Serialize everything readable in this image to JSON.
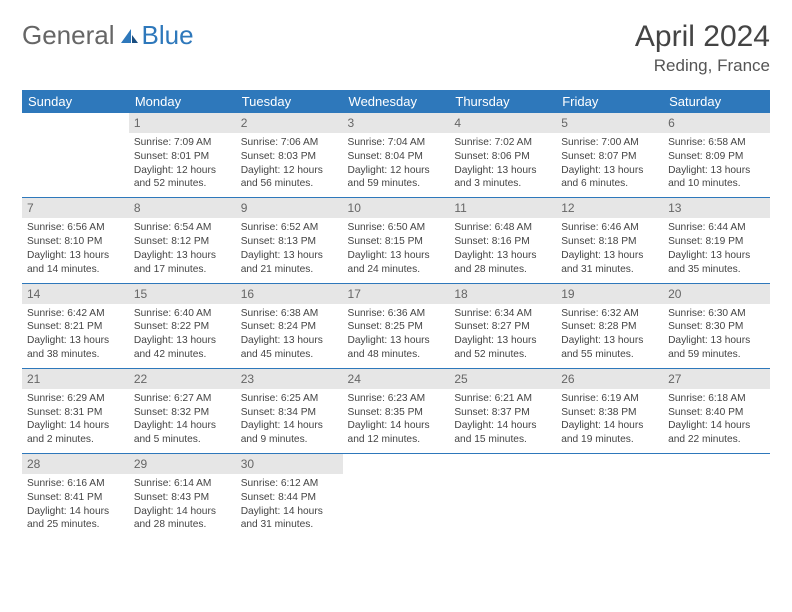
{
  "logo": {
    "text1": "General",
    "text2": "Blue"
  },
  "title": "April 2024",
  "location": "Reding, France",
  "weekdays": [
    "Sunday",
    "Monday",
    "Tuesday",
    "Wednesday",
    "Thursday",
    "Friday",
    "Saturday"
  ],
  "colors": {
    "header_bg": "#2e78bb",
    "header_text": "#ffffff",
    "daynum_bg": "#e6e6e6",
    "rule": "#2e78bb",
    "logo_blue": "#2e78bb"
  },
  "cells": [
    {
      "day": "",
      "sunrise": "",
      "sunset": "",
      "daylight": ""
    },
    {
      "day": "1",
      "sunrise": "Sunrise: 7:09 AM",
      "sunset": "Sunset: 8:01 PM",
      "daylight": "Daylight: 12 hours and 52 minutes."
    },
    {
      "day": "2",
      "sunrise": "Sunrise: 7:06 AM",
      "sunset": "Sunset: 8:03 PM",
      "daylight": "Daylight: 12 hours and 56 minutes."
    },
    {
      "day": "3",
      "sunrise": "Sunrise: 7:04 AM",
      "sunset": "Sunset: 8:04 PM",
      "daylight": "Daylight: 12 hours and 59 minutes."
    },
    {
      "day": "4",
      "sunrise": "Sunrise: 7:02 AM",
      "sunset": "Sunset: 8:06 PM",
      "daylight": "Daylight: 13 hours and 3 minutes."
    },
    {
      "day": "5",
      "sunrise": "Sunrise: 7:00 AM",
      "sunset": "Sunset: 8:07 PM",
      "daylight": "Daylight: 13 hours and 6 minutes."
    },
    {
      "day": "6",
      "sunrise": "Sunrise: 6:58 AM",
      "sunset": "Sunset: 8:09 PM",
      "daylight": "Daylight: 13 hours and 10 minutes."
    },
    {
      "day": "7",
      "sunrise": "Sunrise: 6:56 AM",
      "sunset": "Sunset: 8:10 PM",
      "daylight": "Daylight: 13 hours and 14 minutes."
    },
    {
      "day": "8",
      "sunrise": "Sunrise: 6:54 AM",
      "sunset": "Sunset: 8:12 PM",
      "daylight": "Daylight: 13 hours and 17 minutes."
    },
    {
      "day": "9",
      "sunrise": "Sunrise: 6:52 AM",
      "sunset": "Sunset: 8:13 PM",
      "daylight": "Daylight: 13 hours and 21 minutes."
    },
    {
      "day": "10",
      "sunrise": "Sunrise: 6:50 AM",
      "sunset": "Sunset: 8:15 PM",
      "daylight": "Daylight: 13 hours and 24 minutes."
    },
    {
      "day": "11",
      "sunrise": "Sunrise: 6:48 AM",
      "sunset": "Sunset: 8:16 PM",
      "daylight": "Daylight: 13 hours and 28 minutes."
    },
    {
      "day": "12",
      "sunrise": "Sunrise: 6:46 AM",
      "sunset": "Sunset: 8:18 PM",
      "daylight": "Daylight: 13 hours and 31 minutes."
    },
    {
      "day": "13",
      "sunrise": "Sunrise: 6:44 AM",
      "sunset": "Sunset: 8:19 PM",
      "daylight": "Daylight: 13 hours and 35 minutes."
    },
    {
      "day": "14",
      "sunrise": "Sunrise: 6:42 AM",
      "sunset": "Sunset: 8:21 PM",
      "daylight": "Daylight: 13 hours and 38 minutes."
    },
    {
      "day": "15",
      "sunrise": "Sunrise: 6:40 AM",
      "sunset": "Sunset: 8:22 PM",
      "daylight": "Daylight: 13 hours and 42 minutes."
    },
    {
      "day": "16",
      "sunrise": "Sunrise: 6:38 AM",
      "sunset": "Sunset: 8:24 PM",
      "daylight": "Daylight: 13 hours and 45 minutes."
    },
    {
      "day": "17",
      "sunrise": "Sunrise: 6:36 AM",
      "sunset": "Sunset: 8:25 PM",
      "daylight": "Daylight: 13 hours and 48 minutes."
    },
    {
      "day": "18",
      "sunrise": "Sunrise: 6:34 AM",
      "sunset": "Sunset: 8:27 PM",
      "daylight": "Daylight: 13 hours and 52 minutes."
    },
    {
      "day": "19",
      "sunrise": "Sunrise: 6:32 AM",
      "sunset": "Sunset: 8:28 PM",
      "daylight": "Daylight: 13 hours and 55 minutes."
    },
    {
      "day": "20",
      "sunrise": "Sunrise: 6:30 AM",
      "sunset": "Sunset: 8:30 PM",
      "daylight": "Daylight: 13 hours and 59 minutes."
    },
    {
      "day": "21",
      "sunrise": "Sunrise: 6:29 AM",
      "sunset": "Sunset: 8:31 PM",
      "daylight": "Daylight: 14 hours and 2 minutes."
    },
    {
      "day": "22",
      "sunrise": "Sunrise: 6:27 AM",
      "sunset": "Sunset: 8:32 PM",
      "daylight": "Daylight: 14 hours and 5 minutes."
    },
    {
      "day": "23",
      "sunrise": "Sunrise: 6:25 AM",
      "sunset": "Sunset: 8:34 PM",
      "daylight": "Daylight: 14 hours and 9 minutes."
    },
    {
      "day": "24",
      "sunrise": "Sunrise: 6:23 AM",
      "sunset": "Sunset: 8:35 PM",
      "daylight": "Daylight: 14 hours and 12 minutes."
    },
    {
      "day": "25",
      "sunrise": "Sunrise: 6:21 AM",
      "sunset": "Sunset: 8:37 PM",
      "daylight": "Daylight: 14 hours and 15 minutes."
    },
    {
      "day": "26",
      "sunrise": "Sunrise: 6:19 AM",
      "sunset": "Sunset: 8:38 PM",
      "daylight": "Daylight: 14 hours and 19 minutes."
    },
    {
      "day": "27",
      "sunrise": "Sunrise: 6:18 AM",
      "sunset": "Sunset: 8:40 PM",
      "daylight": "Daylight: 14 hours and 22 minutes."
    },
    {
      "day": "28",
      "sunrise": "Sunrise: 6:16 AM",
      "sunset": "Sunset: 8:41 PM",
      "daylight": "Daylight: 14 hours and 25 minutes."
    },
    {
      "day": "29",
      "sunrise": "Sunrise: 6:14 AM",
      "sunset": "Sunset: 8:43 PM",
      "daylight": "Daylight: 14 hours and 28 minutes."
    },
    {
      "day": "30",
      "sunrise": "Sunrise: 6:12 AM",
      "sunset": "Sunset: 8:44 PM",
      "daylight": "Daylight: 14 hours and 31 minutes."
    },
    {
      "day": "",
      "sunrise": "",
      "sunset": "",
      "daylight": ""
    },
    {
      "day": "",
      "sunrise": "",
      "sunset": "",
      "daylight": ""
    },
    {
      "day": "",
      "sunrise": "",
      "sunset": "",
      "daylight": ""
    },
    {
      "day": "",
      "sunrise": "",
      "sunset": "",
      "daylight": ""
    }
  ]
}
